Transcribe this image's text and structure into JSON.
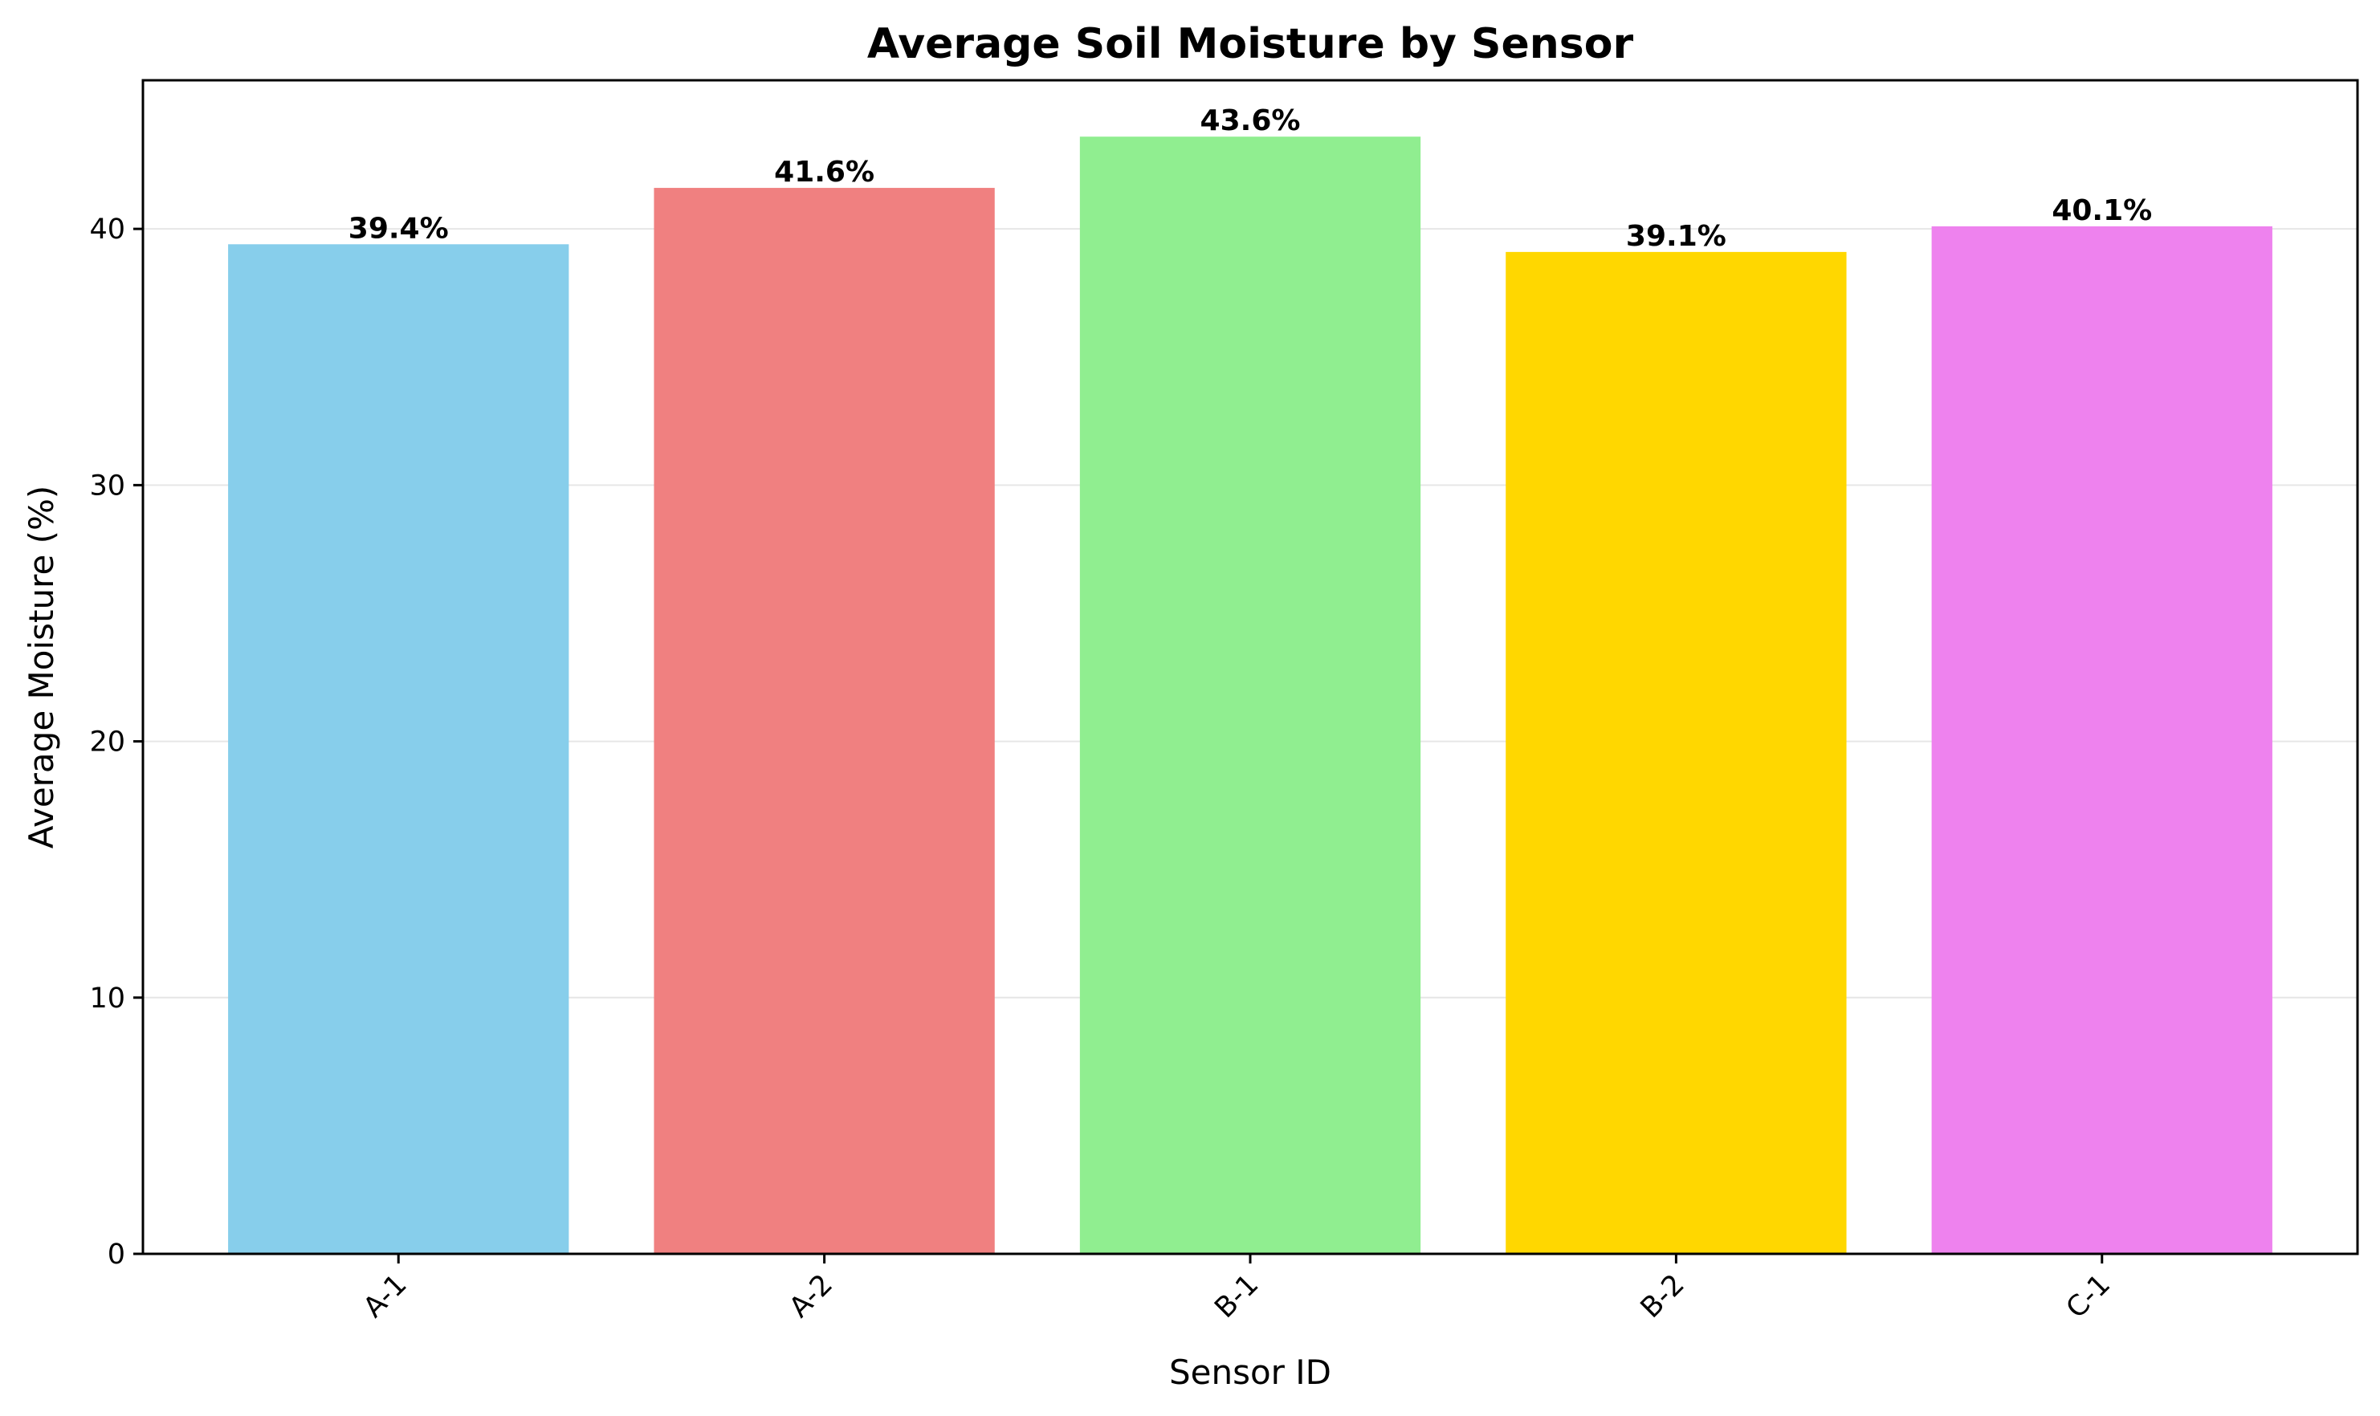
{
  "chart_data": {
    "type": "bar",
    "title": "Average Soil Moisture by Sensor",
    "xlabel": "Sensor ID",
    "ylabel": "Average Moisture (%)",
    "categories": [
      "A-1",
      "A-2",
      "B-1",
      "B-2",
      "C-1"
    ],
    "values": [
      39.4,
      41.6,
      43.6,
      39.1,
      40.1
    ],
    "data_labels": [
      "39.4%",
      "41.6%",
      "43.6%",
      "39.1%",
      "40.1%"
    ],
    "colors": [
      "#87CEEB",
      "#F08080",
      "#90EE90",
      "#FFD700",
      "#EE82EE"
    ],
    "ylim": [
      0,
      45.8
    ],
    "yticks": [
      0,
      10,
      20,
      30,
      40
    ],
    "ytick_labels": [
      "0",
      "10",
      "20",
      "30",
      "40"
    ],
    "grid": "horizontal",
    "legend": "none",
    "xtick_rotation": "45 degrees"
  }
}
